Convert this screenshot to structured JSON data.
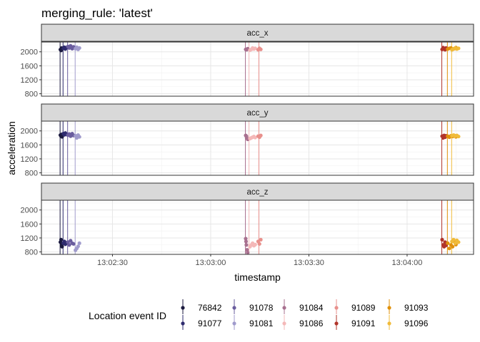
{
  "chart_data": {
    "type": "scatter",
    "title": "merging_rule: 'latest'",
    "xlabel": "timestamp",
    "ylabel": "acceleration",
    "facets": [
      "acc_x",
      "acc_y",
      "acc_z"
    ],
    "x_ticks": [
      "13:02:30",
      "13:03:00",
      "13:03:30",
      "13:04:00"
    ],
    "x_tick_seconds": [
      150,
      180,
      210,
      240
    ],
    "xlim_seconds": [
      128.3,
      260.3
    ],
    "y_ticks": [
      800,
      1200,
      1600,
      2000
    ],
    "ylim": [
      730,
      2280
    ],
    "grid": true,
    "legend": {
      "title": "Location event ID",
      "position": "bottom"
    },
    "series": [
      {
        "name": "76842",
        "color": "#1b1a3f",
        "event_second": 134.0,
        "acc_x": [
          [
            134.1,
            2065
          ],
          [
            134.3,
            2040
          ],
          [
            134.5,
            2110
          ],
          [
            134.6,
            2090
          ]
        ],
        "acc_y": [
          [
            134.1,
            1880
          ],
          [
            134.3,
            1850
          ],
          [
            134.5,
            1900
          ],
          [
            134.6,
            1830
          ]
        ],
        "acc_z": [
          [
            134.1,
            1080
          ],
          [
            134.3,
            1150
          ],
          [
            134.5,
            1000
          ],
          [
            134.6,
            950
          ]
        ]
      },
      {
        "name": "91077",
        "color": "#2e2b6e",
        "event_second": 134.9,
        "acc_x": [
          [
            135.0,
            2100
          ],
          [
            135.3,
            2130
          ],
          [
            135.6,
            2080
          ],
          [
            135.9,
            2120
          ]
        ],
        "acc_y": [
          [
            135.0,
            1920
          ],
          [
            135.3,
            1890
          ],
          [
            135.6,
            1940
          ],
          [
            135.9,
            1900
          ]
        ],
        "acc_z": [
          [
            135.0,
            1050
          ],
          [
            135.3,
            1100
          ],
          [
            135.6,
            1020
          ],
          [
            135.9,
            1060
          ]
        ]
      },
      {
        "name": "91078",
        "color": "#6a5d9e",
        "event_second": 136.3,
        "acc_x": [
          [
            136.4,
            2150
          ],
          [
            136.8,
            2110
          ],
          [
            137.2,
            2170
          ],
          [
            137.7,
            2090
          ],
          [
            138.1,
            2140
          ]
        ],
        "acc_y": [
          [
            136.4,
            1880
          ],
          [
            136.8,
            1910
          ],
          [
            137.2,
            1850
          ],
          [
            137.7,
            1920
          ],
          [
            138.1,
            1870
          ]
        ],
        "acc_z": [
          [
            136.4,
            1080
          ],
          [
            136.8,
            1000
          ],
          [
            137.2,
            1120
          ],
          [
            137.7,
            1050
          ],
          [
            138.1,
            1030
          ]
        ]
      },
      {
        "name": "91081",
        "color": "#a09bcc",
        "event_second": 138.6,
        "acc_x": [
          [
            138.7,
            2090
          ],
          [
            139.1,
            2130
          ],
          [
            139.5,
            2070
          ],
          [
            139.9,
            2110
          ]
        ],
        "acc_y": [
          [
            138.7,
            1860
          ],
          [
            139.1,
            1800
          ],
          [
            139.5,
            1880
          ],
          [
            139.9,
            1830
          ]
        ],
        "acc_z": [
          [
            138.7,
            850
          ],
          [
            139.1,
            900
          ],
          [
            139.5,
            960
          ],
          [
            139.9,
            1050
          ]
        ]
      },
      {
        "name": "91084",
        "color": "#a8708f",
        "event_second": 190.6,
        "acc_x": [
          [
            190.7,
            2070
          ],
          [
            191.0,
            2060
          ],
          [
            191.3,
            2090
          ]
        ],
        "acc_y": [
          [
            190.7,
            1870
          ],
          [
            191.0,
            1800
          ],
          [
            191.3,
            1760
          ],
          [
            190.9,
            1850
          ]
        ],
        "acc_z": [
          [
            190.7,
            1180
          ],
          [
            190.9,
            1000
          ],
          [
            191.1,
            860
          ],
          [
            191.3,
            780
          ],
          [
            190.8,
            1100
          ]
        ]
      },
      {
        "name": "91086",
        "color": "#f4b8b8",
        "event_second": 191.7,
        "acc_x": [
          [
            192.0,
            2050
          ],
          [
            192.4,
            2070
          ],
          [
            192.8,
            2110
          ],
          [
            193.2,
            2080
          ],
          [
            193.6,
            2100
          ]
        ],
        "acc_y": [
          [
            192.0,
            1780
          ],
          [
            192.4,
            1800
          ],
          [
            192.8,
            1820
          ],
          [
            193.2,
            1840
          ],
          [
            193.6,
            1810
          ]
        ],
        "acc_z": [
          [
            192.0,
            950
          ],
          [
            192.4,
            1000
          ],
          [
            192.8,
            1050
          ],
          [
            193.2,
            980
          ],
          [
            193.6,
            1010
          ]
        ]
      },
      {
        "name": "91089",
        "color": "#e8908c",
        "event_second": 194.7,
        "acc_x": [
          [
            194.5,
            2060
          ],
          [
            194.9,
            2100
          ],
          [
            195.3,
            2070
          ]
        ],
        "acc_y": [
          [
            194.5,
            1850
          ],
          [
            194.9,
            1820
          ],
          [
            195.3,
            1870
          ]
        ],
        "acc_z": [
          [
            194.5,
            1100
          ],
          [
            194.9,
            1030
          ],
          [
            195.3,
            1150
          ]
        ]
      },
      {
        "name": "91091",
        "color": "#b1342a",
        "event_second": 250.6,
        "acc_x": [
          [
            250.7,
            2070
          ],
          [
            251.0,
            2120
          ],
          [
            251.3,
            2090
          ],
          [
            251.6,
            2060
          ],
          [
            251.9,
            2110
          ]
        ],
        "acc_y": [
          [
            250.7,
            1850
          ],
          [
            251.0,
            1800
          ],
          [
            251.3,
            1870
          ],
          [
            251.6,
            1820
          ],
          [
            251.9,
            1860
          ]
        ],
        "acc_z": [
          [
            250.7,
            1150
          ],
          [
            251.0,
            1000
          ],
          [
            251.3,
            950
          ],
          [
            251.6,
            1080
          ],
          [
            251.9,
            990
          ]
        ]
      },
      {
        "name": "91093",
        "color": "#e0900a",
        "event_second": 252.3,
        "acc_x": [
          [
            252.4,
            2080
          ],
          [
            252.9,
            2100
          ],
          [
            253.4,
            2110
          ],
          [
            253.9,
            2070
          ],
          [
            254.4,
            2090
          ],
          [
            254.9,
            2120
          ]
        ],
        "acc_y": [
          [
            252.4,
            1850
          ],
          [
            252.9,
            1820
          ],
          [
            253.4,
            1860
          ],
          [
            253.9,
            1840
          ],
          [
            254.4,
            1870
          ],
          [
            254.9,
            1830
          ]
        ],
        "acc_z": [
          [
            252.4,
            1050
          ],
          [
            252.9,
            900
          ],
          [
            253.4,
            1000
          ],
          [
            253.9,
            950
          ],
          [
            254.4,
            1100
          ],
          [
            254.9,
            1010
          ]
        ]
      },
      {
        "name": "91096",
        "color": "#f0bb3a",
        "event_second": 253.6,
        "acc_x": [
          [
            253.7,
            2060
          ],
          [
            254.2,
            2090
          ],
          [
            254.7,
            2110
          ],
          [
            255.2,
            2080
          ],
          [
            255.7,
            2100
          ]
        ],
        "acc_y": [
          [
            253.7,
            1860
          ],
          [
            254.2,
            1880
          ],
          [
            254.7,
            1850
          ],
          [
            255.2,
            1870
          ],
          [
            255.7,
            1840
          ]
        ],
        "acc_z": [
          [
            253.7,
            1100
          ],
          [
            254.2,
            1150
          ],
          [
            254.7,
            1050
          ],
          [
            255.2,
            1130
          ],
          [
            255.7,
            1080
          ]
        ]
      }
    ]
  }
}
